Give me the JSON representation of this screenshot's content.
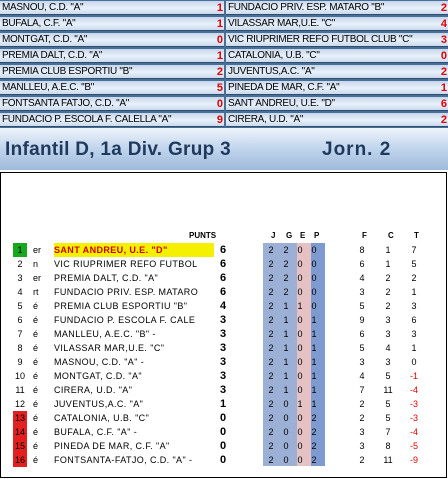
{
  "results": [
    {
      "home": "MASNOU, C.D. \"A\"",
      "home_goals": "1",
      "away": "FUNDACIO PRIV. ESP. MATARO \"B\"",
      "away_goals": "2"
    },
    {
      "home": "BUFALA, C.F. \"A\"",
      "home_goals": "1",
      "away": "VILASSAR MAR,U.E. \"C\"",
      "away_goals": "4"
    },
    {
      "home": "MONTGAT, C.D. \"A\"",
      "home_goals": "0",
      "away": "VIC RIUPRIMER REFO FUTBOL CLUB \"C\"",
      "away_goals": "3"
    },
    {
      "home": "PREMIA DALT, C.D. \"A\"",
      "home_goals": "1",
      "away": "CATALONIA, U.B. \"C\"",
      "away_goals": "0"
    },
    {
      "home": "PREMIA CLUB ESPORTIU \"B\"",
      "home_goals": "2",
      "away": "JUVENTUS,A.C. \"A\"",
      "away_goals": "2"
    },
    {
      "home": "MANLLEU, A.E.C. \"B\"",
      "home_goals": "5",
      "away": "PINEDA DE MAR, C.F. \"A\"",
      "away_goals": "1"
    },
    {
      "home": "FONTSANTA FATJO, C.D. \"A\"",
      "home_goals": "0",
      "away": "SANT ANDREU, U.E. \"D\"",
      "away_goals": "6"
    },
    {
      "home": "FUNDACIO P. ESCOLA F. CALELLA \"A\"",
      "home_goals": "9",
      "away": "CIRERA, U.D. \"A\"",
      "away_goals": "2"
    }
  ],
  "title": {
    "left": "Infantil D, 1a Div. Grup 3",
    "right": "Jorn. 2"
  },
  "headers": {
    "points": "PUNTS",
    "j": "J",
    "g": "G",
    "e": "E",
    "p": "P",
    "f": "F",
    "c": "C",
    "t": "T"
  },
  "standings": [
    {
      "pos": "1",
      "ord": "er",
      "team": "SANT ANDREU, U.E. \"D\"",
      "pts": "6",
      "j": "2",
      "g": "2",
      "e": "0",
      "p": "0",
      "f": "8",
      "c": "1",
      "t": "7",
      "color": "green",
      "highlight": true
    },
    {
      "pos": "2",
      "ord": "n",
      "team": "VIC RIUPRIMER REFO FUTBOL",
      "pts": "6",
      "j": "2",
      "g": "2",
      "e": "0",
      "p": "0",
      "f": "6",
      "c": "1",
      "t": "5",
      "color": "",
      "highlight": false
    },
    {
      "pos": "3",
      "ord": "er",
      "team": "PREMIA DALT, C.D. \"A\"",
      "pts": "6",
      "j": "2",
      "g": "2",
      "e": "0",
      "p": "0",
      "f": "4",
      "c": "2",
      "t": "2",
      "color": "",
      "highlight": false
    },
    {
      "pos": "4",
      "ord": "rt",
      "team": "FUNDACIO PRIV. ESP. MATARO",
      "pts": "6",
      "j": "2",
      "g": "2",
      "e": "0",
      "p": "0",
      "f": "3",
      "c": "2",
      "t": "1",
      "color": "",
      "highlight": false
    },
    {
      "pos": "5",
      "ord": "é",
      "team": "PREMIA CLUB ESPORTIU \"B\"",
      "pts": "4",
      "j": "2",
      "g": "1",
      "e": "1",
      "p": "0",
      "f": "5",
      "c": "2",
      "t": "3",
      "color": "",
      "highlight": false
    },
    {
      "pos": "6",
      "ord": "é",
      "team": "FUNDACIO P. ESCOLA F. CALE",
      "pts": "3",
      "j": "2",
      "g": "1",
      "e": "0",
      "p": "1",
      "f": "9",
      "c": "3",
      "t": "6",
      "color": "",
      "highlight": false
    },
    {
      "pos": "7",
      "ord": "é",
      "team": "MANLLEU, A.E.C. \"B\" -",
      "pts": "3",
      "j": "2",
      "g": "1",
      "e": "0",
      "p": "1",
      "f": "6",
      "c": "3",
      "t": "3",
      "color": "",
      "highlight": false
    },
    {
      "pos": "8",
      "ord": "é",
      "team": "VILASSAR MAR,U.E. \"C\"",
      "pts": "3",
      "j": "2",
      "g": "1",
      "e": "0",
      "p": "1",
      "f": "5",
      "c": "4",
      "t": "1",
      "color": "",
      "highlight": false
    },
    {
      "pos": "9",
      "ord": "é",
      "team": "MASNOU, C.D. \"A\" -",
      "pts": "3",
      "j": "2",
      "g": "1",
      "e": "0",
      "p": "1",
      "f": "3",
      "c": "3",
      "t": "0",
      "color": "",
      "highlight": false
    },
    {
      "pos": "10",
      "ord": "é",
      "team": "MONTGAT, C.D. \"A\"",
      "pts": "3",
      "j": "2",
      "g": "1",
      "e": "0",
      "p": "1",
      "f": "4",
      "c": "5",
      "t": "-1",
      "color": "",
      "highlight": false
    },
    {
      "pos": "11",
      "ord": "é",
      "team": "CIRERA, U.D. \"A\"",
      "pts": "3",
      "j": "2",
      "g": "1",
      "e": "0",
      "p": "1",
      "f": "7",
      "c": "11",
      "t": "-4",
      "color": "",
      "highlight": false
    },
    {
      "pos": "12",
      "ord": "é",
      "team": "JUVENTUS,A.C. \"A\"",
      "pts": "1",
      "j": "2",
      "g": "0",
      "e": "1",
      "p": "1",
      "f": "2",
      "c": "5",
      "t": "-3",
      "color": "",
      "highlight": false
    },
    {
      "pos": "13",
      "ord": "é",
      "team": "CATALONIA, U.B. \"C\"",
      "pts": "0",
      "j": "2",
      "g": "0",
      "e": "0",
      "p": "2",
      "f": "2",
      "c": "5",
      "t": "-3",
      "color": "red",
      "highlight": false
    },
    {
      "pos": "14",
      "ord": "é",
      "team": "BUFALA, C.F. \"A\" -",
      "pts": "0",
      "j": "2",
      "g": "0",
      "e": "0",
      "p": "2",
      "f": "3",
      "c": "7",
      "t": "-4",
      "color": "red",
      "highlight": false
    },
    {
      "pos": "15",
      "ord": "é",
      "team": "PINEDA DE MAR, C.F. \"A\"",
      "pts": "0",
      "j": "2",
      "g": "0",
      "e": "0",
      "p": "2",
      "f": "3",
      "c": "8",
      "t": "-5",
      "color": "red",
      "highlight": false
    },
    {
      "pos": "16",
      "ord": "é",
      "team": "FONTSANTA-FATJO, C.D. \"A\" -",
      "pts": "0",
      "j": "2",
      "g": "0",
      "e": "0",
      "p": "2",
      "f": "2",
      "c": "11",
      "t": "-9",
      "color": "red",
      "highlight": false
    }
  ]
}
